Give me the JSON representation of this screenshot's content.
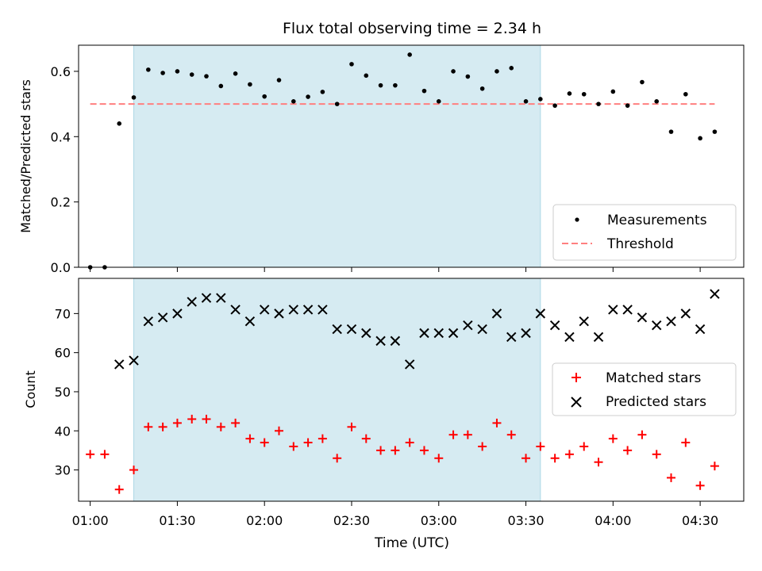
{
  "figure": {
    "title": "Flux total observing time = 2.34 h",
    "xlabel": "Time (UTC)"
  },
  "chart_data": [
    {
      "type": "scatter",
      "ylabel": "Matched/Predicted stars",
      "xlim": [
        "00:56",
        "04:45"
      ],
      "ylim": [
        0,
        0.68
      ],
      "yticks": [
        0.0,
        0.2,
        0.4,
        0.6
      ],
      "ytick_labels": [
        "0.0",
        "0.2",
        "0.4",
        "0.6"
      ],
      "highlight_span": [
        "01:15",
        "03:35"
      ],
      "highlight_color": "#add8e6",
      "threshold": {
        "name": "Threshold",
        "value": 0.5,
        "x_range": [
          "01:00",
          "04:35"
        ],
        "color": "#ff7f7f",
        "style": "dashed"
      },
      "series": [
        {
          "name": "Measurements",
          "marker": "dot",
          "color": "#000000",
          "x": [
            "01:00",
            "01:05",
            "01:10",
            "01:15",
            "01:20",
            "01:25",
            "01:30",
            "01:35",
            "01:40",
            "01:45",
            "01:50",
            "01:55",
            "02:00",
            "02:05",
            "02:10",
            "02:15",
            "02:20",
            "02:25",
            "02:30",
            "02:35",
            "02:40",
            "02:45",
            "02:50",
            "02:55",
            "03:00",
            "03:05",
            "03:10",
            "03:15",
            "03:20",
            "03:25",
            "03:30",
            "03:35",
            "03:40",
            "03:45",
            "03:50",
            "03:55",
            "04:00",
            "04:05",
            "04:10",
            "04:15",
            "04:20",
            "04:25",
            "04:30",
            "04:35"
          ],
          "y": [
            0.0,
            0.0,
            0.44,
            0.52,
            0.605,
            0.595,
            0.6,
            0.59,
            0.585,
            0.555,
            0.593,
            0.56,
            0.523,
            0.573,
            0.508,
            0.522,
            0.537,
            0.5,
            0.622,
            0.587,
            0.557,
            0.557,
            0.651,
            0.54,
            0.508,
            0.6,
            0.584,
            0.547,
            0.6,
            0.61,
            0.508,
            0.515,
            0.495,
            0.532,
            0.53,
            0.5,
            0.538,
            0.495,
            0.567,
            0.508,
            0.415,
            0.53,
            0.395,
            0.415
          ]
        }
      ],
      "legend": {
        "position": "lower-right",
        "entries": [
          "Measurements",
          "Threshold"
        ]
      }
    },
    {
      "type": "scatter",
      "ylabel": "Count",
      "xlim": [
        "00:56",
        "04:45"
      ],
      "ylim": [
        22,
        79
      ],
      "yticks": [
        30,
        40,
        50,
        60,
        70
      ],
      "ytick_labels": [
        "30",
        "40",
        "50",
        "60",
        "70"
      ],
      "xticks": [
        "01:00",
        "01:30",
        "02:00",
        "02:30",
        "03:00",
        "03:30",
        "04:00",
        "04:30"
      ],
      "highlight_span": [
        "01:15",
        "03:35"
      ],
      "highlight_color": "#add8e6",
      "series": [
        {
          "name": "Matched stars",
          "marker": "plus",
          "color": "#ff0000",
          "x": [
            "01:00",
            "01:05",
            "01:10",
            "01:15",
            "01:20",
            "01:25",
            "01:30",
            "01:35",
            "01:40",
            "01:45",
            "01:50",
            "01:55",
            "02:00",
            "02:05",
            "02:10",
            "02:15",
            "02:20",
            "02:25",
            "02:30",
            "02:35",
            "02:40",
            "02:45",
            "02:50",
            "02:55",
            "03:00",
            "03:05",
            "03:10",
            "03:15",
            "03:20",
            "03:25",
            "03:30",
            "03:35",
            "03:40",
            "03:45",
            "03:50",
            "03:55",
            "04:00",
            "04:05",
            "04:10",
            "04:15",
            "04:20",
            "04:25",
            "04:30",
            "04:35"
          ],
          "y": [
            34,
            34,
            25,
            30,
            41,
            41,
            42,
            43,
            43,
            41,
            42,
            38,
            37,
            40,
            36,
            37,
            38,
            33,
            41,
            38,
            35,
            35,
            37,
            35,
            33,
            39,
            39,
            36,
            42,
            39,
            33,
            36,
            33,
            34,
            36,
            32,
            38,
            35,
            39,
            34,
            28,
            37,
            26,
            31
          ]
        },
        {
          "name": "Predicted stars",
          "marker": "x",
          "color": "#000000",
          "x": [
            "01:10",
            "01:15",
            "01:20",
            "01:25",
            "01:30",
            "01:35",
            "01:40",
            "01:45",
            "01:50",
            "01:55",
            "02:00",
            "02:05",
            "02:10",
            "02:15",
            "02:20",
            "02:25",
            "02:30",
            "02:35",
            "02:40",
            "02:45",
            "02:50",
            "02:55",
            "03:00",
            "03:05",
            "03:10",
            "03:15",
            "03:20",
            "03:25",
            "03:30",
            "03:35",
            "03:40",
            "03:45",
            "03:50",
            "03:55",
            "04:00",
            "04:05",
            "04:10",
            "04:15",
            "04:20",
            "04:25",
            "04:30",
            "04:35"
          ],
          "y": [
            57,
            58,
            68,
            69,
            70,
            73,
            74,
            74,
            71,
            68,
            71,
            70,
            71,
            71,
            71,
            66,
            66,
            65,
            63,
            63,
            57,
            65,
            65,
            65,
            67,
            66,
            70,
            64,
            65,
            70,
            67,
            64,
            68,
            64,
            71,
            71,
            69,
            67,
            68,
            70,
            66,
            75
          ]
        }
      ],
      "legend": {
        "position": "right",
        "entries": [
          "Matched stars",
          "Predicted stars"
        ]
      }
    }
  ]
}
